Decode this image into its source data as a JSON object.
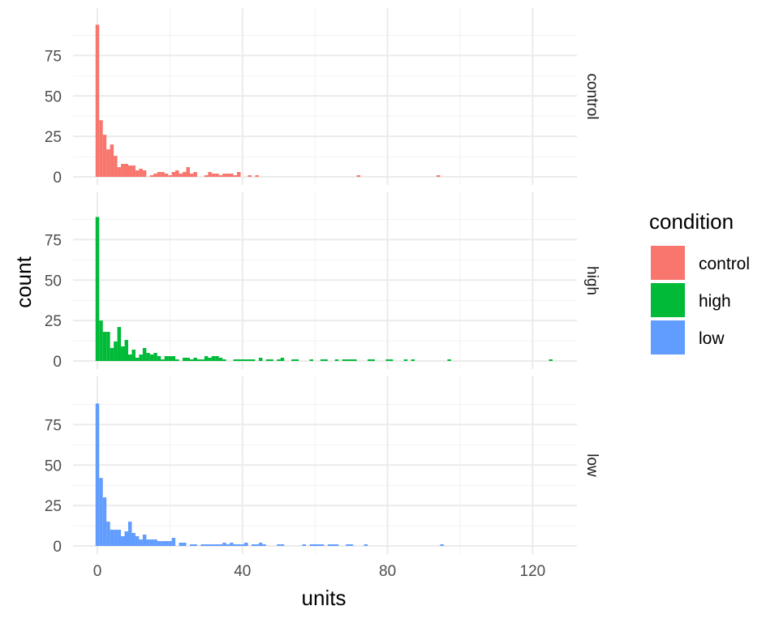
{
  "chart_data": {
    "type": "bar",
    "subtype": "faceted-histogram",
    "title": "",
    "xlabel": "units",
    "ylabel": "count",
    "xlim": [
      -6,
      132
    ],
    "ylim": [
      0,
      94
    ],
    "xticks": [
      0,
      40,
      80,
      120
    ],
    "yticks": [
      0,
      25,
      50,
      75
    ],
    "bin_width": 1,
    "grid": true,
    "legend_title": "condition",
    "legend_position": "right",
    "series": [
      {
        "name": "control",
        "color": "#F8766D",
        "bins": [
          [
            0,
            94
          ],
          [
            1,
            35
          ],
          [
            2,
            26
          ],
          [
            3,
            17
          ],
          [
            4,
            20
          ],
          [
            5,
            13
          ],
          [
            6,
            6
          ],
          [
            7,
            8
          ],
          [
            8,
            8
          ],
          [
            9,
            7
          ],
          [
            10,
            7
          ],
          [
            11,
            4
          ],
          [
            12,
            5
          ],
          [
            13,
            4
          ],
          [
            15,
            1
          ],
          [
            16,
            2
          ],
          [
            17,
            3
          ],
          [
            18,
            3
          ],
          [
            19,
            2
          ],
          [
            20,
            1
          ],
          [
            21,
            3
          ],
          [
            22,
            4
          ],
          [
            23,
            2
          ],
          [
            24,
            3
          ],
          [
            25,
            6
          ],
          [
            26,
            2
          ],
          [
            27,
            3
          ],
          [
            30,
            1
          ],
          [
            31,
            3
          ],
          [
            32,
            2
          ],
          [
            33,
            2
          ],
          [
            34,
            1
          ],
          [
            35,
            2
          ],
          [
            36,
            2
          ],
          [
            37,
            2
          ],
          [
            38,
            1
          ],
          [
            39,
            3
          ],
          [
            42,
            1
          ],
          [
            44,
            1
          ],
          [
            72,
            1
          ],
          [
            94,
            1
          ]
        ]
      },
      {
        "name": "high",
        "color": "#00BA38",
        "bins": [
          [
            0,
            89
          ],
          [
            1,
            25
          ],
          [
            2,
            18
          ],
          [
            3,
            18
          ],
          [
            4,
            8
          ],
          [
            5,
            12
          ],
          [
            6,
            21
          ],
          [
            7,
            9
          ],
          [
            8,
            13
          ],
          [
            9,
            4
          ],
          [
            10,
            7
          ],
          [
            11,
            2
          ],
          [
            12,
            4
          ],
          [
            13,
            8
          ],
          [
            14,
            5
          ],
          [
            15,
            4
          ],
          [
            16,
            5
          ],
          [
            17,
            3
          ],
          [
            18,
            1
          ],
          [
            19,
            3
          ],
          [
            20,
            3
          ],
          [
            21,
            3
          ],
          [
            22,
            1
          ],
          [
            24,
            2
          ],
          [
            25,
            2
          ],
          [
            26,
            1
          ],
          [
            27,
            2
          ],
          [
            28,
            1
          ],
          [
            29,
            1
          ],
          [
            30,
            3
          ],
          [
            31,
            2
          ],
          [
            32,
            3
          ],
          [
            33,
            3
          ],
          [
            34,
            2
          ],
          [
            35,
            1
          ],
          [
            38,
            1
          ],
          [
            39,
            1
          ],
          [
            40,
            1
          ],
          [
            41,
            1
          ],
          [
            42,
            1
          ],
          [
            43,
            1
          ],
          [
            45,
            2
          ],
          [
            47,
            1
          ],
          [
            48,
            1
          ],
          [
            50,
            1
          ],
          [
            51,
            2
          ],
          [
            54,
            1
          ],
          [
            55,
            1
          ],
          [
            59,
            1
          ],
          [
            62,
            1
          ],
          [
            63,
            1
          ],
          [
            66,
            1
          ],
          [
            68,
            1
          ],
          [
            69,
            1
          ],
          [
            70,
            1
          ],
          [
            71,
            1
          ],
          [
            75,
            1
          ],
          [
            76,
            1
          ],
          [
            80,
            1
          ],
          [
            81,
            1
          ],
          [
            85,
            1
          ],
          [
            87,
            1
          ],
          [
            97,
            1
          ],
          [
            125,
            1
          ]
        ]
      },
      {
        "name": "low",
        "color": "#619CFF",
        "bins": [
          [
            0,
            88
          ],
          [
            1,
            42
          ],
          [
            2,
            30
          ],
          [
            3,
            15
          ],
          [
            4,
            10
          ],
          [
            5,
            10
          ],
          [
            6,
            10
          ],
          [
            7,
            6
          ],
          [
            8,
            9
          ],
          [
            9,
            15
          ],
          [
            10,
            8
          ],
          [
            11,
            6
          ],
          [
            12,
            4
          ],
          [
            13,
            7
          ],
          [
            14,
            4
          ],
          [
            15,
            4
          ],
          [
            16,
            4
          ],
          [
            17,
            3
          ],
          [
            18,
            3
          ],
          [
            19,
            3
          ],
          [
            20,
            3
          ],
          [
            21,
            5
          ],
          [
            23,
            2
          ],
          [
            24,
            2
          ],
          [
            26,
            1
          ],
          [
            27,
            1
          ],
          [
            29,
            1
          ],
          [
            30,
            1
          ],
          [
            31,
            1
          ],
          [
            32,
            1
          ],
          [
            33,
            1
          ],
          [
            34,
            1
          ],
          [
            35,
            2
          ],
          [
            36,
            1
          ],
          [
            37,
            2
          ],
          [
            38,
            1
          ],
          [
            39,
            1
          ],
          [
            40,
            1
          ],
          [
            41,
            2
          ],
          [
            43,
            1
          ],
          [
            44,
            1
          ],
          [
            45,
            2
          ],
          [
            46,
            1
          ],
          [
            50,
            1
          ],
          [
            51,
            1
          ],
          [
            57,
            1
          ],
          [
            59,
            1
          ],
          [
            60,
            1
          ],
          [
            61,
            1
          ],
          [
            62,
            1
          ],
          [
            64,
            1
          ],
          [
            65,
            1
          ],
          [
            66,
            1
          ],
          [
            69,
            1
          ],
          [
            70,
            1
          ],
          [
            74,
            1
          ],
          [
            95,
            1
          ]
        ]
      }
    ]
  }
}
